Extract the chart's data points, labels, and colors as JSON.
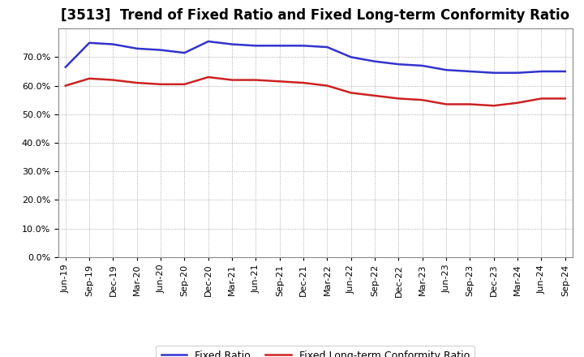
{
  "title": "[3513]  Trend of Fixed Ratio and Fixed Long-term Conformity Ratio",
  "x_labels": [
    "Jun-19",
    "Sep-19",
    "Dec-19",
    "Mar-20",
    "Jun-20",
    "Sep-20",
    "Dec-20",
    "Mar-21",
    "Jun-21",
    "Sep-21",
    "Dec-21",
    "Mar-22",
    "Jun-22",
    "Sep-22",
    "Dec-22",
    "Mar-23",
    "Jun-23",
    "Sep-23",
    "Dec-23",
    "Mar-24",
    "Jun-24",
    "Sep-24"
  ],
  "fixed_ratio": [
    66.5,
    75.0,
    74.5,
    73.0,
    72.5,
    71.5,
    75.5,
    74.5,
    74.0,
    74.0,
    74.0,
    73.5,
    70.0,
    68.5,
    67.5,
    67.0,
    65.5,
    65.0,
    64.5,
    64.5,
    65.0,
    65.0
  ],
  "fixed_lt_ratio": [
    60.0,
    62.5,
    62.0,
    61.0,
    60.5,
    60.5,
    63.0,
    62.0,
    62.0,
    61.5,
    61.0,
    60.0,
    57.5,
    56.5,
    55.5,
    55.0,
    53.5,
    53.5,
    53.0,
    54.0,
    55.5,
    55.5
  ],
  "fixed_ratio_color": "#3333cc",
  "fixed_lt_ratio_color": "#cc2222",
  "grid_color": "#999999",
  "ylim": [
    0,
    80
  ],
  "yticks": [
    0,
    10,
    20,
    30,
    40,
    50,
    60,
    70
  ],
  "legend_fixed_ratio": "Fixed Ratio",
  "legend_fixed_lt_ratio": "Fixed Long-term Conformity Ratio",
  "line_width": 1.8,
  "title_fontsize": 12,
  "tick_fontsize": 8,
  "legend_fontsize": 9
}
